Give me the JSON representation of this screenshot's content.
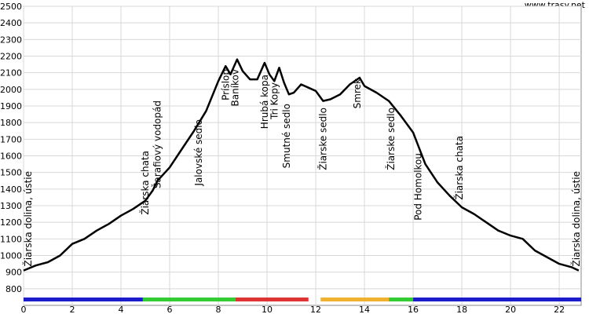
{
  "site": "www.trasy.net",
  "chart_data": {
    "type": "line",
    "x": [
      0,
      0.5,
      1,
      1.5,
      2,
      2.5,
      3,
      3.5,
      4,
      4.5,
      5,
      5.3,
      5.5,
      6,
      6.5,
      7,
      7.5,
      8,
      8.3,
      8.5,
      8.77,
      9,
      9.3,
      9.6,
      9.9,
      10.1,
      10.3,
      10.5,
      10.7,
      10.9,
      11.1,
      11.4,
      11.7,
      12,
      12.3,
      12.6,
      13,
      13.4,
      13.8,
      14,
      14.5,
      15,
      15.5,
      16,
      16.5,
      17,
      17.5,
      18,
      18.5,
      19,
      19.5,
      20,
      20.5,
      21,
      21.5,
      22,
      22.5,
      22.8
    ],
    "values": [
      910,
      940,
      960,
      1000,
      1070,
      1100,
      1150,
      1190,
      1240,
      1280,
      1330,
      1390,
      1450,
      1530,
      1640,
      1750,
      1870,
      2050,
      2140,
      2090,
      2180,
      2110,
      2060,
      2060,
      2160,
      2090,
      2050,
      2130,
      2040,
      1970,
      1980,
      2030,
      2010,
      1990,
      1930,
      1940,
      1970,
      2030,
      2070,
      2020,
      1980,
      1930,
      1840,
      1740,
      1550,
      1440,
      1360,
      1290,
      1250,
      1200,
      1150,
      1120,
      1100,
      1030,
      990,
      950,
      930,
      910
    ],
    "color": "#000000",
    "xlim": [
      0,
      22.9
    ],
    "xticks": [
      0,
      2,
      4,
      6,
      8,
      10,
      12,
      14,
      16,
      18,
      20,
      22
    ],
    "ylim": [
      700,
      2500
    ],
    "yticks": [
      800,
      900,
      1000,
      1100,
      1200,
      1300,
      1400,
      1500,
      1600,
      1700,
      1800,
      1900,
      2000,
      2100,
      2200,
      2300,
      2400,
      2500
    ],
    "grid": true,
    "segments": [
      {
        "color": "#1c1ccc",
        "start": 0,
        "end": 4.9
      },
      {
        "color": "#33cc33",
        "start": 4.9,
        "end": 8.7
      },
      {
        "color": "#dd3333",
        "start": 8.7,
        "end": 11.7
      },
      {
        "color": "#f0b030",
        "start": 12.2,
        "end": 15
      },
      {
        "color": "#33cc33",
        "start": 15,
        "end": 16
      },
      {
        "color": "#1c1ccc",
        "start": 16,
        "end": 22.9
      }
    ],
    "annotations": [
      {
        "label": "Žiarska dolina, ústie",
        "x": 0.2
      },
      {
        "label": "Žiarska chata",
        "x": 5.0
      },
      {
        "label": "Šarafiový vodopád",
        "x": 5.5
      },
      {
        "label": "Jalovské sedlo",
        "x": 7.2
      },
      {
        "label": "Príslop",
        "x": 8.3
      },
      {
        "label": "Baníkov",
        "x": 8.7
      },
      {
        "label": "Hrubá kopa",
        "x": 9.9
      },
      {
        "label": "Tri Kopy",
        "x": 10.3
      },
      {
        "label": "Smutné sedlo",
        "x": 10.8
      },
      {
        "label": "Žiarske sedlo",
        "x": 12.3
      },
      {
        "label": "Smrek",
        "x": 13.7
      },
      {
        "label": "Žiarske sedlo",
        "x": 15.1
      },
      {
        "label": "Pod Homolkou",
        "x": 16.2
      },
      {
        "label": "Žiarska chata",
        "x": 17.9
      },
      {
        "label": "Žiarska dolina, ústie",
        "x": 22.7
      }
    ]
  }
}
